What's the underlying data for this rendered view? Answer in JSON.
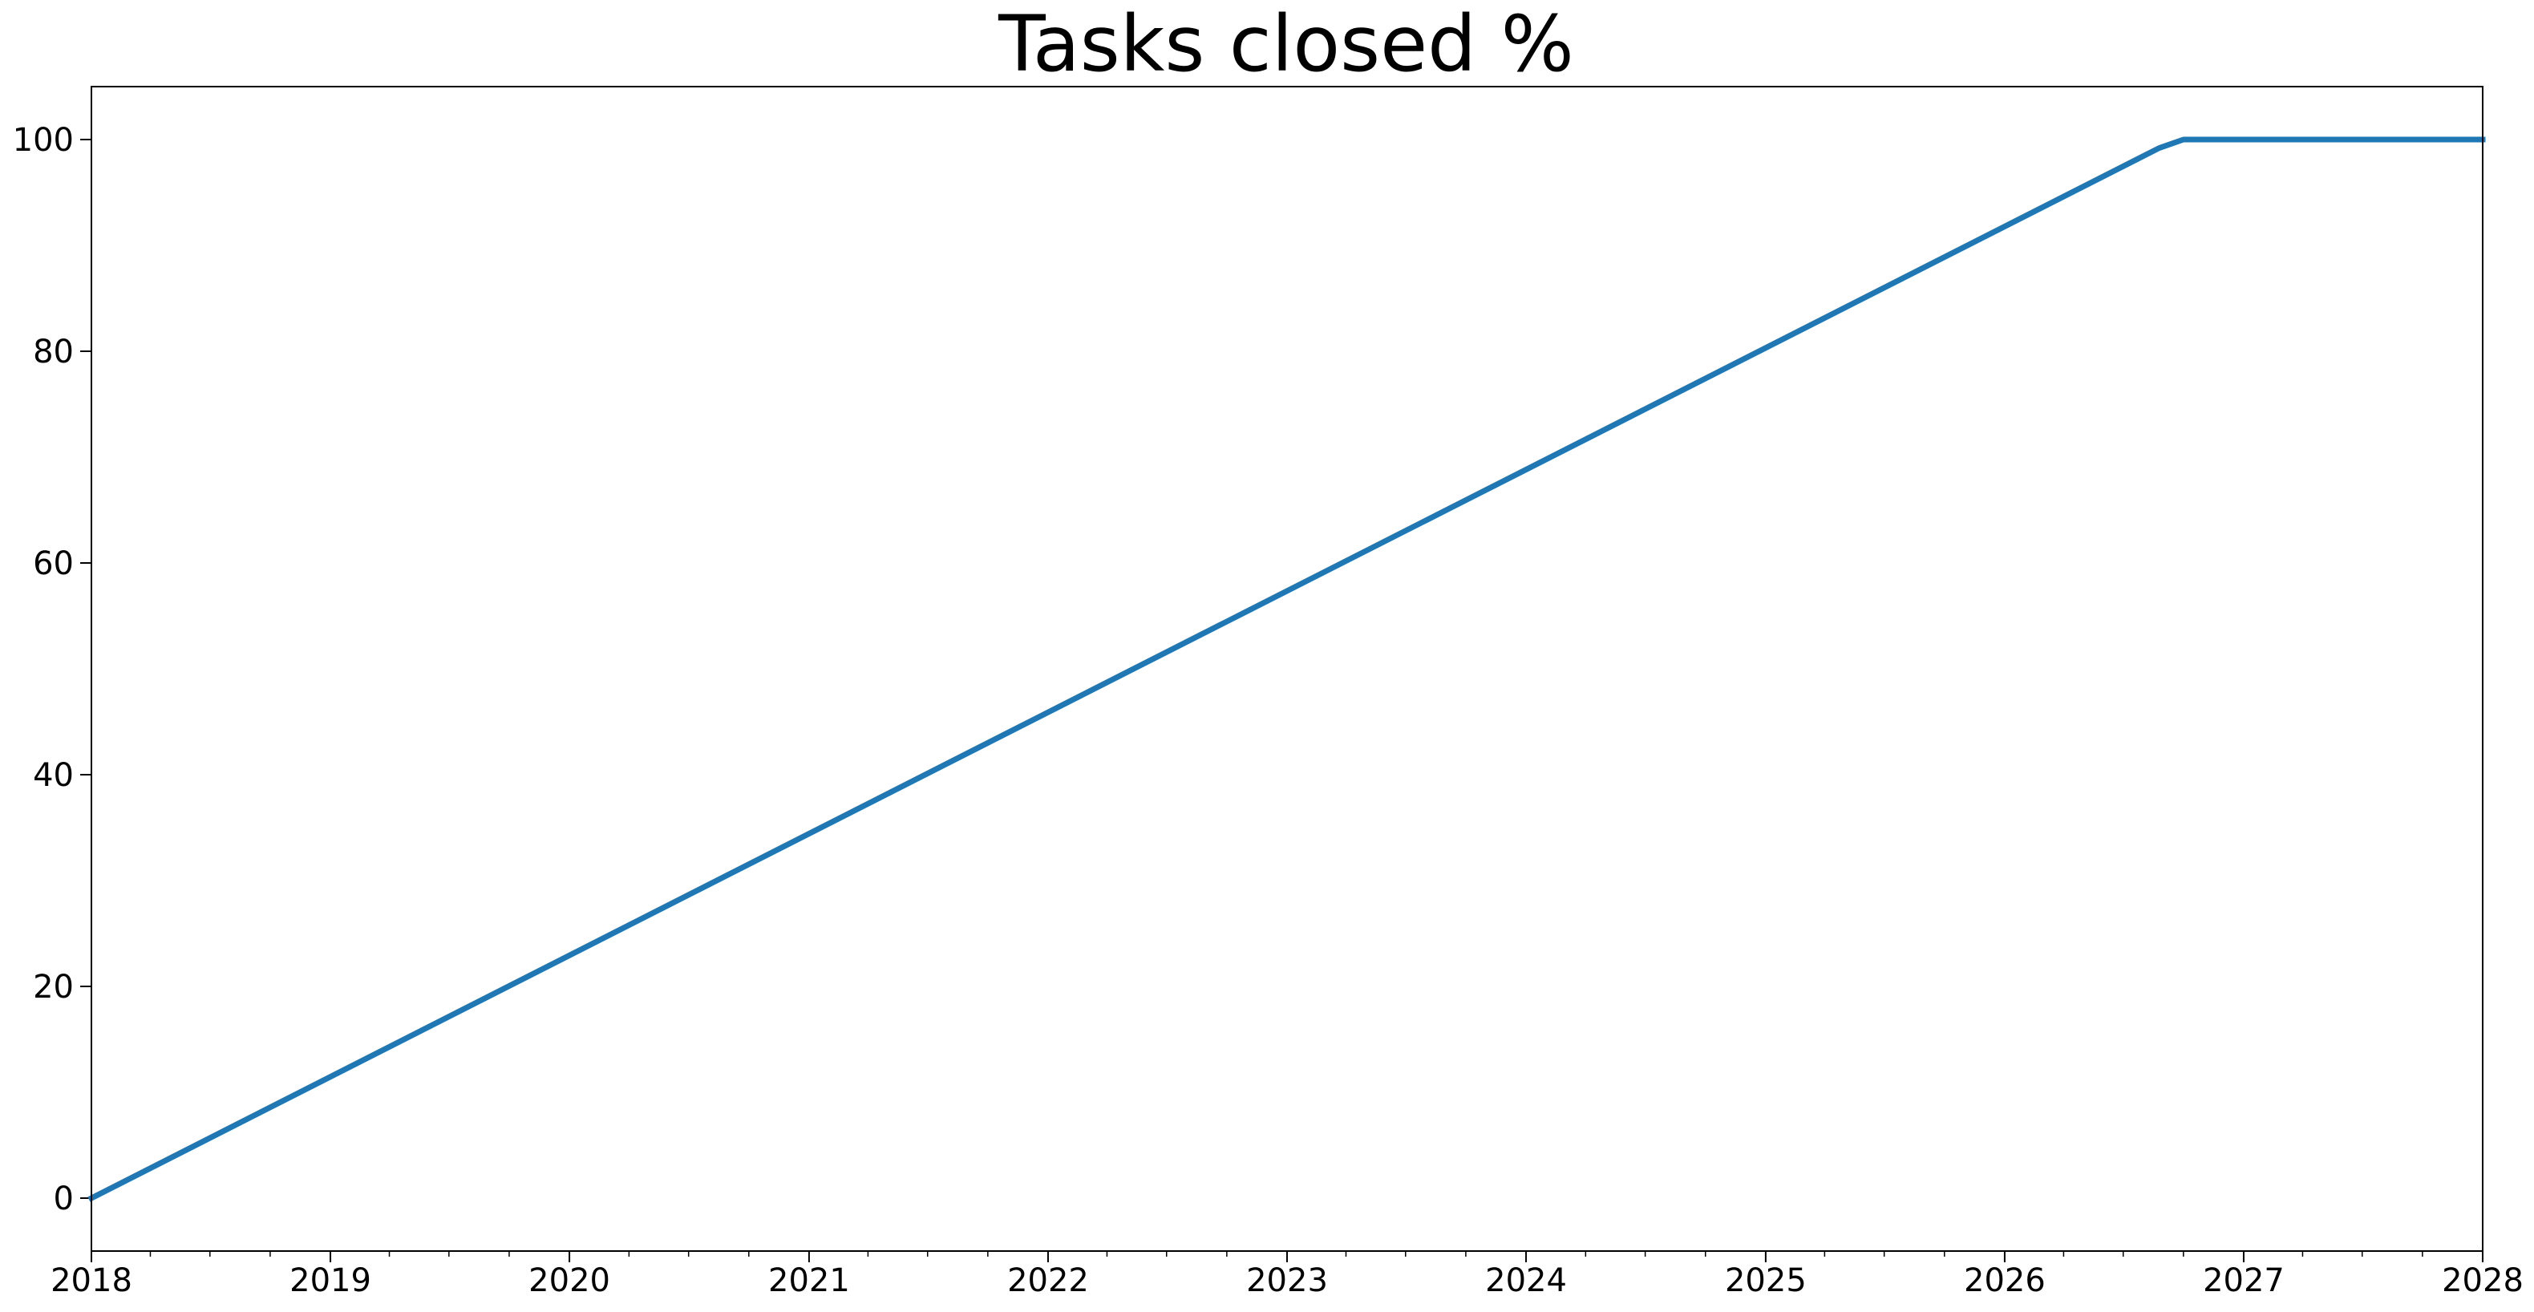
{
  "chart_data": {
    "type": "line",
    "title": "Tasks closed %",
    "xlabel": "",
    "ylabel": "",
    "x_ticks": [
      "2018",
      "2019",
      "2020",
      "2021",
      "2022",
      "2023",
      "2024",
      "2025",
      "2026",
      "2027",
      "2028"
    ],
    "y_ticks": [
      "0",
      "20",
      "40",
      "60",
      "80",
      "100"
    ],
    "xlim": [
      "2018-01-01",
      "2028-01-01"
    ],
    "ylim": [
      -5,
      105
    ],
    "grid": false,
    "legend": "none",
    "series": [
      {
        "color": "#1f77b4",
        "points": [
          {
            "x": "2018-01-01",
            "y": 0
          },
          {
            "x": "2026-08-25",
            "y": 99.2
          },
          {
            "x": "2026-10-01",
            "y": 100
          },
          {
            "x": "2028-01-01",
            "y": 100
          }
        ]
      }
    ]
  }
}
